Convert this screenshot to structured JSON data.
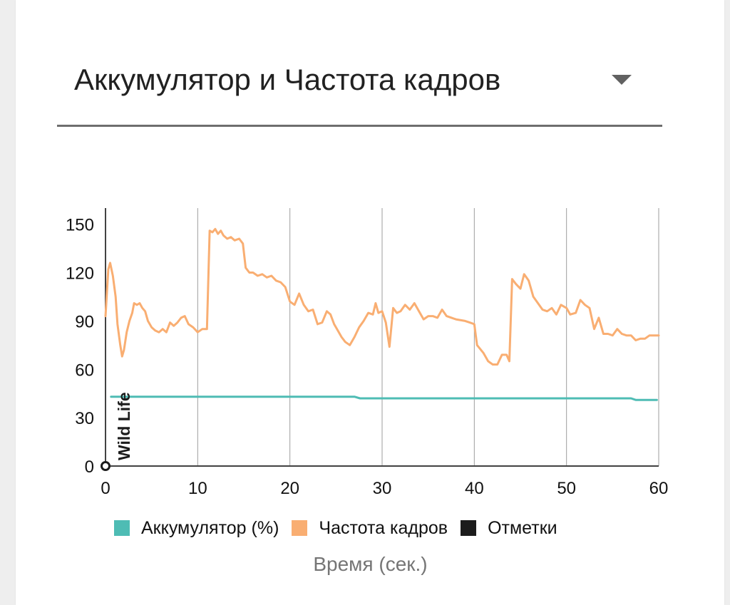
{
  "dropdown": {
    "label": "Аккумулятор и Частота кадров"
  },
  "colors": {
    "battery": "#4ebcb4",
    "fps": "#f9ae72",
    "marks": "#1c1c1c"
  },
  "chart_data": {
    "type": "line",
    "xlabel": "Время (сек.)",
    "ylabel": "",
    "xlim": [
      0,
      60
    ],
    "ylim": [
      0,
      160
    ],
    "x_ticks": [
      0,
      10,
      20,
      30,
      40,
      50,
      60
    ],
    "y_ticks": [
      0,
      30,
      60,
      90,
      120,
      150
    ],
    "grid": "vertical",
    "legend_position": "bottom",
    "legend": [
      "Аккумулятор (%)",
      "Частота кадров",
      "Отметки"
    ],
    "marker": {
      "x": 0,
      "label": "Wild Life"
    },
    "series": [
      {
        "name": "Аккумулятор (%)",
        "color": "#4ebcb4",
        "points": [
          [
            0.6,
            43
          ],
          [
            27,
            43
          ],
          [
            27.6,
            42
          ],
          [
            57,
            42
          ],
          [
            57.5,
            41
          ],
          [
            59.8,
            41
          ]
        ]
      },
      {
        "name": "Частота кадров",
        "color": "#f9ae72",
        "points": [
          [
            0,
            93
          ],
          [
            0.3,
            122
          ],
          [
            0.5,
            126
          ],
          [
            0.8,
            118
          ],
          [
            1.1,
            105
          ],
          [
            1.3,
            88
          ],
          [
            1.6,
            75
          ],
          [
            1.8,
            68
          ],
          [
            2.0,
            72
          ],
          [
            2.3,
            83
          ],
          [
            2.6,
            90
          ],
          [
            2.9,
            95
          ],
          [
            3.1,
            101
          ],
          [
            3.4,
            100
          ],
          [
            3.7,
            101
          ],
          [
            4.0,
            98
          ],
          [
            4.3,
            96
          ],
          [
            4.6,
            90
          ],
          [
            5.0,
            86
          ],
          [
            5.4,
            84
          ],
          [
            5.8,
            83
          ],
          [
            6.2,
            85
          ],
          [
            6.6,
            83
          ],
          [
            7.0,
            89
          ],
          [
            7.4,
            87
          ],
          [
            7.8,
            89
          ],
          [
            8.2,
            92
          ],
          [
            8.6,
            93
          ],
          [
            9.0,
            88
          ],
          [
            9.5,
            86
          ],
          [
            10.0,
            83
          ],
          [
            10.5,
            85
          ],
          [
            11.0,
            85
          ],
          [
            11.3,
            146
          ],
          [
            11.6,
            145
          ],
          [
            11.9,
            147
          ],
          [
            12.2,
            144
          ],
          [
            12.5,
            146
          ],
          [
            12.8,
            143
          ],
          [
            13.2,
            141
          ],
          [
            13.6,
            142
          ],
          [
            14.0,
            140
          ],
          [
            14.5,
            141
          ],
          [
            14.9,
            138
          ],
          [
            15.2,
            123
          ],
          [
            15.6,
            120
          ],
          [
            16.0,
            120
          ],
          [
            16.5,
            118
          ],
          [
            17.0,
            119
          ],
          [
            17.5,
            117
          ],
          [
            18.0,
            118
          ],
          [
            18.5,
            115
          ],
          [
            19.0,
            114
          ],
          [
            19.5,
            111
          ],
          [
            20.0,
            102
          ],
          [
            20.5,
            100
          ],
          [
            21.0,
            107
          ],
          [
            21.5,
            100
          ],
          [
            22.0,
            96
          ],
          [
            22.5,
            97
          ],
          [
            23.0,
            88
          ],
          [
            23.5,
            89
          ],
          [
            24.0,
            96
          ],
          [
            24.4,
            94
          ],
          [
            24.8,
            88
          ],
          [
            25.2,
            84
          ],
          [
            25.6,
            80
          ],
          [
            26.0,
            77
          ],
          [
            26.5,
            75
          ],
          [
            27.0,
            80
          ],
          [
            27.5,
            86
          ],
          [
            28.0,
            90
          ],
          [
            28.5,
            95
          ],
          [
            29.0,
            94
          ],
          [
            29.3,
            101
          ],
          [
            29.6,
            95
          ],
          [
            30.0,
            96
          ],
          [
            30.4,
            89
          ],
          [
            30.8,
            74
          ],
          [
            31.2,
            98
          ],
          [
            31.6,
            95
          ],
          [
            32.0,
            96
          ],
          [
            32.5,
            100
          ],
          [
            33.0,
            97
          ],
          [
            33.5,
            101
          ],
          [
            34.0,
            96
          ],
          [
            34.5,
            91
          ],
          [
            35.0,
            93
          ],
          [
            35.5,
            93
          ],
          [
            36.0,
            92
          ],
          [
            36.5,
            97
          ],
          [
            37.0,
            93
          ],
          [
            38.0,
            91
          ],
          [
            39.0,
            90
          ],
          [
            39.5,
            89
          ],
          [
            40.0,
            88
          ],
          [
            40.3,
            75
          ],
          [
            41.0,
            70
          ],
          [
            41.5,
            65
          ],
          [
            42.0,
            63
          ],
          [
            42.5,
            63
          ],
          [
            43.0,
            69
          ],
          [
            43.5,
            69
          ],
          [
            43.8,
            65
          ],
          [
            44.1,
            116
          ],
          [
            44.5,
            113
          ],
          [
            45.0,
            110
          ],
          [
            45.4,
            119
          ],
          [
            45.9,
            115
          ],
          [
            46.4,
            105
          ],
          [
            46.9,
            101
          ],
          [
            47.4,
            97
          ],
          [
            47.9,
            96
          ],
          [
            48.4,
            98
          ],
          [
            48.9,
            94
          ],
          [
            49.4,
            100
          ],
          [
            50.0,
            98
          ],
          [
            50.4,
            94
          ],
          [
            51.0,
            95
          ],
          [
            51.5,
            103
          ],
          [
            52.0,
            100
          ],
          [
            52.5,
            98
          ],
          [
            53.0,
            85
          ],
          [
            53.5,
            92
          ],
          [
            54.0,
            82
          ],
          [
            54.5,
            82
          ],
          [
            55.0,
            81
          ],
          [
            55.5,
            85
          ],
          [
            56.0,
            82
          ],
          [
            56.5,
            81
          ],
          [
            57.0,
            81
          ],
          [
            57.5,
            78
          ],
          [
            58.0,
            79
          ],
          [
            58.5,
            79
          ],
          [
            59.0,
            81
          ],
          [
            59.5,
            81
          ],
          [
            60.0,
            81
          ]
        ]
      }
    ]
  }
}
